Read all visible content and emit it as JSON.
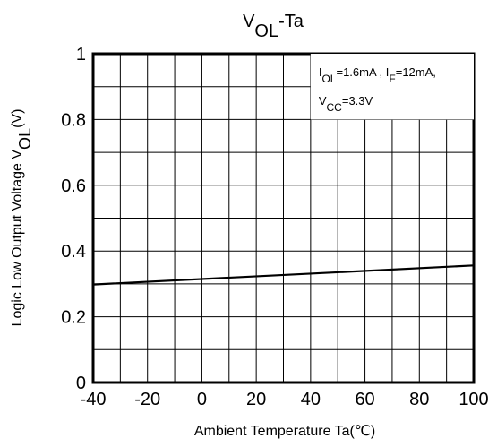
{
  "chart_data": {
    "type": "line",
    "title": {
      "main": "V",
      "sub": "OL",
      "rest": "-Ta"
    },
    "xlabel": "Ambient Temperature Ta(℃)",
    "ylabel": {
      "main": "Logic Low Output Voltage V",
      "sub": "OL",
      "rest": "(V)"
    },
    "xlim": [
      -40,
      100
    ],
    "ylim": [
      0,
      1
    ],
    "x_ticks": [
      -40,
      -20,
      0,
      20,
      40,
      60,
      80,
      100
    ],
    "y_ticks": [
      0,
      0.2,
      0.4,
      0.6,
      0.8,
      1
    ],
    "y_tick_labels": [
      "0",
      "0.2",
      "0.4",
      "0.6",
      "0.8",
      "1"
    ],
    "x_grid_step": 10,
    "y_grid_step": 0.1,
    "grid": true,
    "annotation": {
      "line1": [
        {
          "text": "I",
          "sub": "OL"
        },
        {
          "text": "=1.6mA , I",
          "sub": "F"
        },
        {
          "text": "=12mA,"
        }
      ],
      "line2": [
        {
          "text": "V",
          "sub": "CC"
        },
        {
          "text": "=3.3V"
        }
      ]
    },
    "series": [
      {
        "x": [
          -40,
          100
        ],
        "y": [
          0.298,
          0.356
        ]
      }
    ]
  }
}
